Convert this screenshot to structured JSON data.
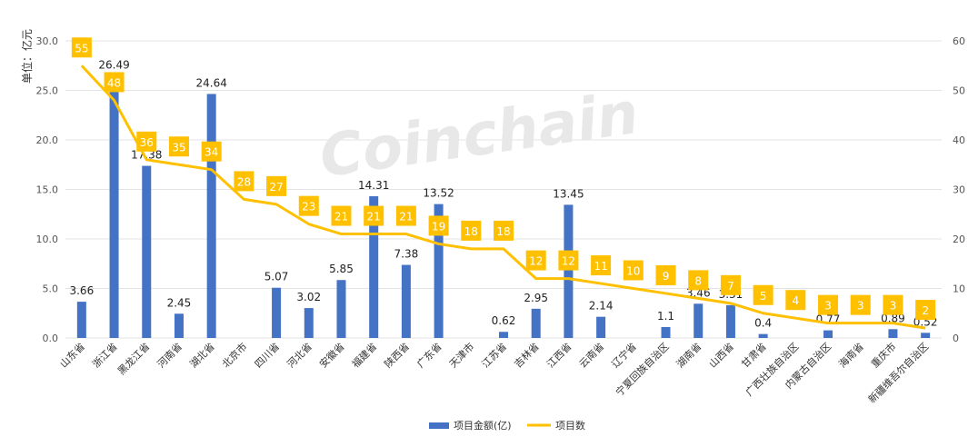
{
  "chart_data": {
    "type": "bar",
    "ylabel_left": "单位：亿元",
    "ylim_left": [
      0,
      30
    ],
    "yticks_left": [
      "0.0",
      "5.0",
      "10.0",
      "15.0",
      "20.0",
      "25.0",
      "30.0"
    ],
    "ylim_right": [
      0,
      60
    ],
    "yticks_right": [
      "0",
      "10",
      "20",
      "30",
      "40",
      "50",
      "60"
    ],
    "categories": [
      "山东省",
      "浙江省",
      "黑龙江省",
      "河南省",
      "湖北省",
      "北京市",
      "四川省",
      "河北省",
      "安徽省",
      "福建省",
      "陕西省",
      "广东省",
      "天津市",
      "江苏省",
      "吉林省",
      "江西省",
      "云南省",
      "辽宁省",
      "宁夏回族自治区",
      "湖南省",
      "山西省",
      "甘肃省",
      "广西壮族自治区",
      "内蒙古自治区",
      "海南省",
      "重庆市",
      "新疆维吾尔自治区"
    ],
    "series": [
      {
        "name": "项目金额(亿)",
        "type": "bar",
        "axis": "left",
        "color": "#4472C4",
        "values": [
          3.66,
          26.49,
          17.38,
          2.45,
          24.64,
          null,
          5.07,
          3.02,
          5.85,
          14.31,
          7.38,
          13.52,
          null,
          0.62,
          2.95,
          13.45,
          2.14,
          null,
          1.1,
          3.46,
          3.31,
          0.4,
          null,
          0.77,
          null,
          0.89,
          0.52
        ]
      },
      {
        "name": "项目数",
        "type": "line",
        "axis": "right",
        "color": "#FFC000",
        "values": [
          55,
          48,
          36,
          35,
          34,
          28,
          27,
          23,
          21,
          21,
          21,
          19,
          18,
          18,
          12,
          12,
          11,
          10,
          9,
          8,
          7,
          5,
          4,
          3,
          3,
          3,
          2
        ]
      }
    ],
    "watermark": "Coinchain",
    "grid": true,
    "legend_position": "bottom"
  }
}
